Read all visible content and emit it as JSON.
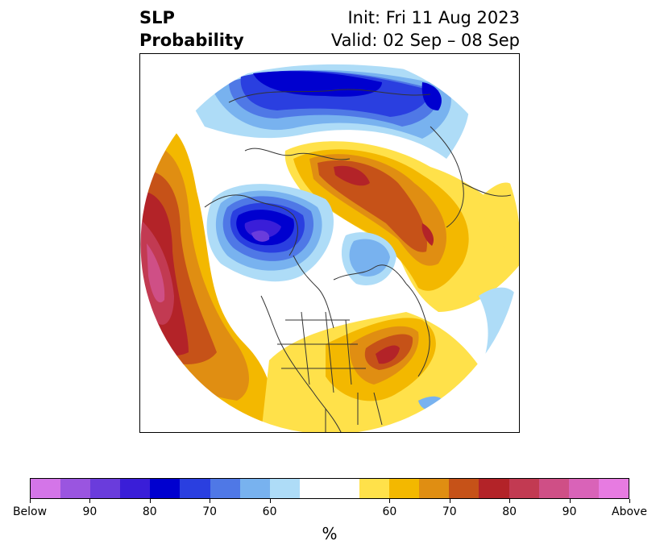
{
  "title": {
    "left_line1": "SLP",
    "left_line2": "Probability",
    "right_line1": "Init: Fri 11 Aug 2023",
    "right_line2": "Valid: 02 Sep – 08 Sep"
  },
  "colorbar": {
    "unit": "%",
    "colors": [
      "#d475e8",
      "#9a55e0",
      "#6a3cdc",
      "#3a1ed8",
      "#0000cf",
      "#2a3fe0",
      "#4f78e6",
      "#78b2ef",
      "#aedcf7",
      "#ffffff",
      "#ffe14a",
      "#f3b800",
      "#e08e12",
      "#c65218",
      "#b32328",
      "#c23a52",
      "#cf4f86",
      "#d963b8",
      "#e77be1"
    ],
    "tick_labels": [
      "Below",
      "90",
      "80",
      "70",
      "60",
      "60",
      "70",
      "80",
      "90",
      "Above"
    ]
  },
  "map": {
    "projection": "north-polar-stereographic",
    "notable_features": [
      "negative anomaly over Greenland/Arctic",
      "positive anomaly over Eurasia",
      "positive anomaly over North Pacific",
      "positive anomaly over eastern North America"
    ]
  }
}
